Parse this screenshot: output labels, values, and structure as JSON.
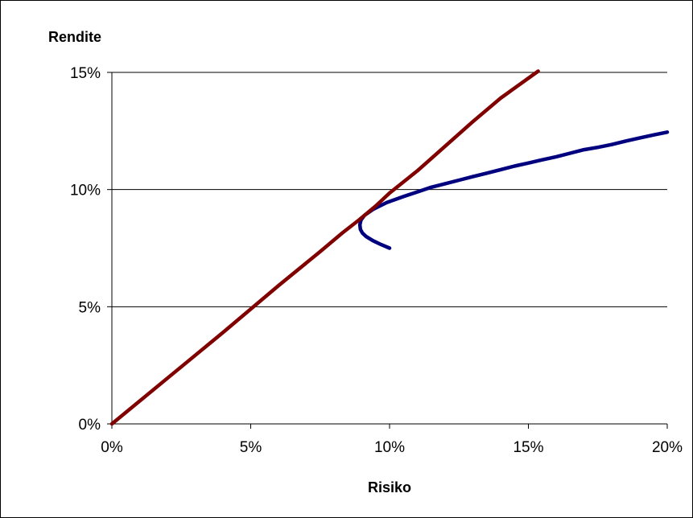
{
  "chart_data": {
    "type": "line",
    "title": "",
    "xlabel": "Risiko",
    "ylabel": "Rendite",
    "xlim": [
      0,
      0.2
    ],
    "ylim": [
      0,
      0.15
    ],
    "x_ticks": [
      0,
      0.05,
      0.1,
      0.15,
      0.2
    ],
    "x_tick_labels": [
      "0%",
      "5%",
      "10%",
      "15%",
      "20%"
    ],
    "y_ticks": [
      0,
      0.05,
      0.1,
      0.15
    ],
    "y_tick_labels": [
      "0%",
      "5%",
      "10%",
      "15%"
    ],
    "grid": "horizontal",
    "legend": "none",
    "series": [
      {
        "color": "#00007f",
        "points": [
          [
            0.1,
            0.075
          ],
          [
            0.097,
            0.0765
          ],
          [
            0.094,
            0.0782
          ],
          [
            0.0915,
            0.08
          ],
          [
            0.0902,
            0.0815
          ],
          [
            0.0895,
            0.083
          ],
          [
            0.0893,
            0.085
          ],
          [
            0.0897,
            0.087
          ],
          [
            0.091,
            0.089
          ],
          [
            0.094,
            0.0915
          ],
          [
            0.099,
            0.0945
          ],
          [
            0.105,
            0.097
          ],
          [
            0.11,
            0.099
          ],
          [
            0.115,
            0.101
          ],
          [
            0.12,
            0.1025
          ],
          [
            0.125,
            0.104
          ],
          [
            0.13,
            0.1055
          ],
          [
            0.135,
            0.107
          ],
          [
            0.14,
            0.1085
          ],
          [
            0.145,
            0.11
          ],
          [
            0.15,
            0.1113
          ],
          [
            0.155,
            0.1127
          ],
          [
            0.16,
            0.114
          ],
          [
            0.165,
            0.1155
          ],
          [
            0.17,
            0.117
          ],
          [
            0.175,
            0.118
          ],
          [
            0.18,
            0.1192
          ],
          [
            0.185,
            0.1207
          ],
          [
            0.19,
            0.122
          ],
          [
            0.195,
            0.1233
          ],
          [
            0.2,
            0.1245
          ]
        ]
      },
      {
        "color": "#800000",
        "points": [
          [
            0.0,
            0.0
          ],
          [
            0.02,
            0.0195
          ],
          [
            0.04,
            0.039
          ],
          [
            0.06,
            0.059
          ],
          [
            0.075,
            0.0735
          ],
          [
            0.083,
            0.0815
          ],
          [
            0.089,
            0.087
          ],
          [
            0.095,
            0.093
          ],
          [
            0.1,
            0.0985
          ],
          [
            0.11,
            0.108
          ],
          [
            0.12,
            0.1185
          ],
          [
            0.13,
            0.129
          ],
          [
            0.14,
            0.139
          ],
          [
            0.1535,
            0.1505
          ]
        ]
      }
    ]
  }
}
